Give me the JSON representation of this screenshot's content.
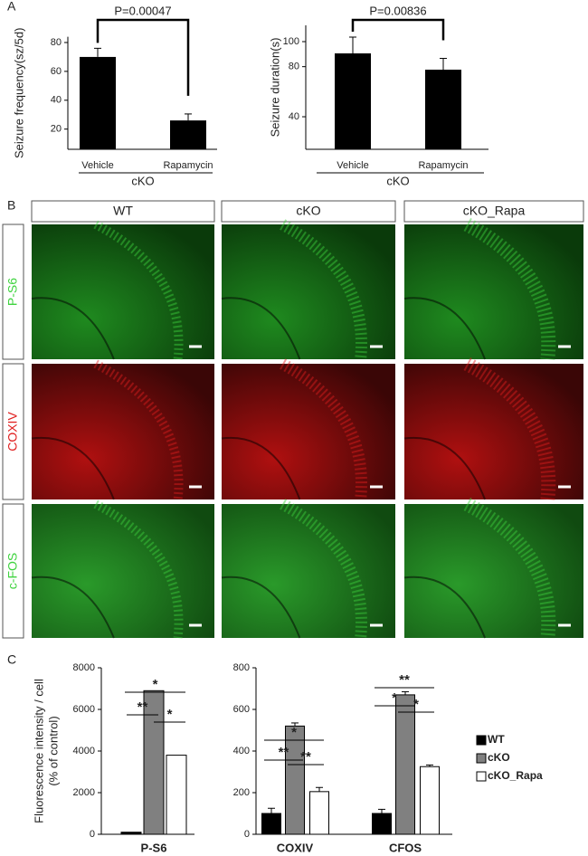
{
  "panel_labels": [
    "A",
    "B",
    "C"
  ],
  "image_grid": {
    "columns": [
      "WT",
      "cKO",
      "cKO_Rapa"
    ],
    "rows": [
      "P-S6",
      "COXIV",
      "c-FOS"
    ]
  },
  "chart_data": [
    {
      "type": "bar",
      "ylabel": "Seizure frequency(sz/5d)",
      "categories": [
        "Vehicle",
        "Rapamycin"
      ],
      "group_label": "cKO",
      "values": [
        70,
        26
      ],
      "errors": [
        6,
        4.5
      ],
      "color": "#000000",
      "ylim": [
        6,
        84
      ],
      "yticks": [
        20,
        40,
        60,
        80
      ],
      "annotation": "P=0.00047"
    },
    {
      "type": "bar",
      "ylabel": "Seizure duration(s)",
      "categories": [
        "Vehicle",
        "Rapamycin"
      ],
      "group_label": "cKO",
      "values": [
        90.6,
        77.6
      ],
      "errors": [
        13,
        9
      ],
      "color": "#000000",
      "ylim": [
        14,
        113
      ],
      "yticks": [
        40,
        80,
        100
      ],
      "annotation": "P=0.00836"
    },
    {
      "type": "grouped-bar",
      "ylabel": [
        "Fluorescence intensity / cell",
        "(% of control)"
      ],
      "categories": [
        "P-S6"
      ],
      "series": [
        {
          "color": "#000000",
          "values": [
            100
          ]
        },
        {
          "color": "#808080",
          "values": [
            6900
          ]
        },
        {
          "color": "#ffffff",
          "values": [
            3800
          ]
        }
      ],
      "ylim": [
        0,
        8000
      ],
      "yticks": [
        0,
        2000,
        4000,
        6000,
        8000
      ],
      "annotations": [
        "*",
        "**",
        "*"
      ]
    },
    {
      "type": "grouped-bar",
      "categories": [
        "COXIV",
        "CFOS"
      ],
      "series": [
        {
          "name": "WT",
          "color": "#000000",
          "values": [
            100,
            100
          ],
          "errors": [
            25,
            20
          ]
        },
        {
          "name": "cKO",
          "color": "#808080",
          "values": [
            520,
            670
          ],
          "errors": [
            15,
            15
          ]
        },
        {
          "name": "cKO_Rapa",
          "color": "#ffffff",
          "values": [
            205,
            325
          ],
          "errors": [
            20,
            8
          ]
        }
      ],
      "ylim": [
        0,
        800
      ],
      "yticks": [
        0,
        200,
        400,
        600,
        800
      ],
      "annotations": [
        "*",
        "**",
        "**",
        "**",
        "*",
        "*"
      ]
    }
  ]
}
